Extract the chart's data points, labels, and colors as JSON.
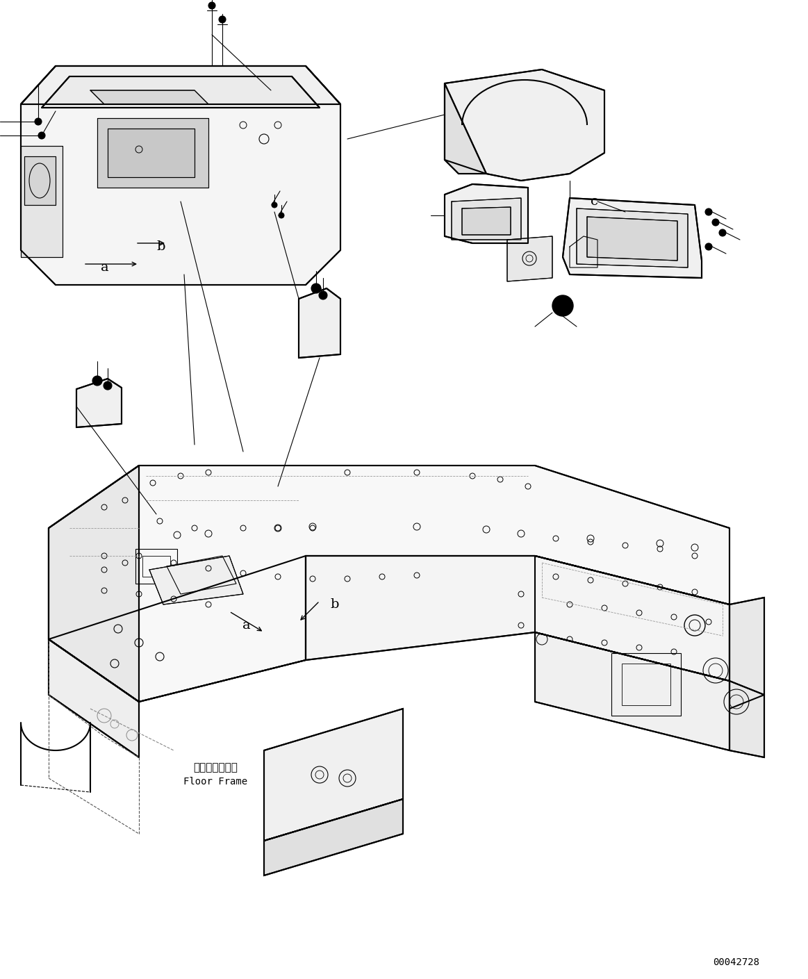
{
  "figure_width": 11.63,
  "figure_height": 14.09,
  "dpi": 100,
  "bg_color": "#ffffff",
  "line_color": "#000000",
  "part_id": "00042728",
  "label_floor_frame_jp": "フロアフレーム",
  "label_floor_frame_en": "Floor Frame",
  "annotations": [
    "a",
    "b",
    "c"
  ],
  "title": ""
}
